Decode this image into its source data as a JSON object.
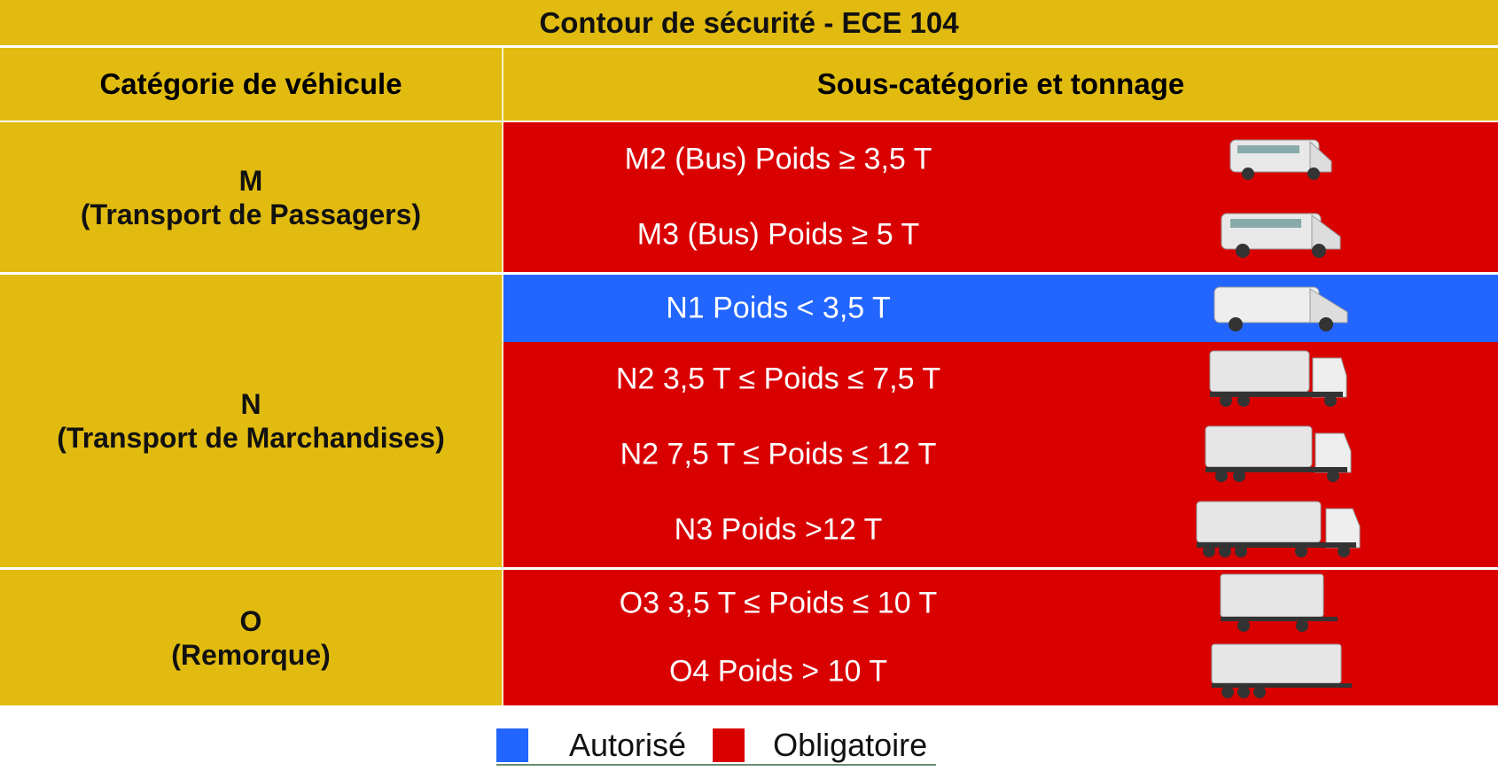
{
  "title": "Contour de sécurité - ECE 104",
  "headers": {
    "category": "Catégorie de véhicule",
    "subcategory": "Sous-catégorie et tonnage"
  },
  "colors": {
    "header": "#e1bb10",
    "authorized": "#2266ff",
    "mandatory": "#d90000"
  },
  "sections": [
    {
      "code": "M",
      "name": "(Transport de Passagers)",
      "rows": [
        {
          "label": "M2 (Bus) Poids ≥ 3,5 T",
          "status": "Obligatoire",
          "icon": "minibus-icon"
        },
        {
          "label": "M3 (Bus) Poids ≥ 5 T",
          "status": "Obligatoire",
          "icon": "minibus-icon"
        }
      ]
    },
    {
      "code": "N",
      "name": "(Transport de Marchandises)",
      "rows": [
        {
          "label": "N1 Poids < 3,5 T",
          "status": "Autorisé",
          "icon": "van-icon"
        },
        {
          "label": "N2 3,5 T ≤ Poids ≤ 7,5 T",
          "status": "Obligatoire",
          "icon": "truck-icon"
        },
        {
          "label": "N2 7,5 T ≤ Poids ≤ 12 T",
          "status": "Obligatoire",
          "icon": "truck-icon"
        },
        {
          "label": "N3 Poids >12 T",
          "status": "Obligatoire",
          "icon": "semi-truck-icon"
        }
      ]
    },
    {
      "code": "O",
      "name": "(Remorque)",
      "rows": [
        {
          "label": "O3 3,5 T ≤ Poids ≤ 10 T",
          "status": "Obligatoire",
          "icon": "trailer-icon"
        },
        {
          "label": "O4 Poids > 10 T",
          "status": "Obligatoire",
          "icon": "trailer-icon"
        }
      ]
    }
  ],
  "legend": {
    "authorized": "Autorisé",
    "mandatory": "Obligatoire"
  }
}
